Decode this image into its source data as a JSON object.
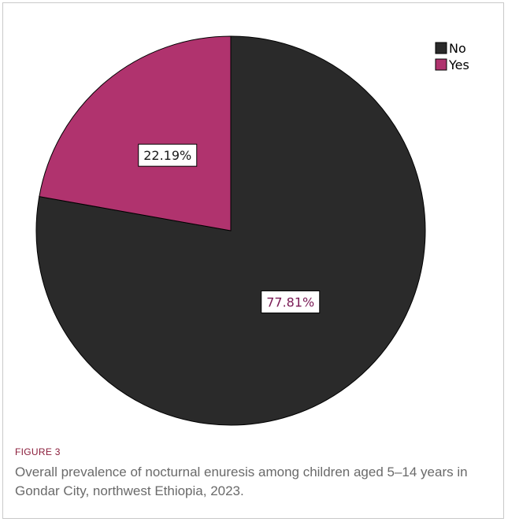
{
  "chart_data": {
    "type": "pie",
    "slices": [
      {
        "label": "No",
        "value": 77.81,
        "display": "77.81%",
        "color": "#2a2a2a",
        "label_color": "#7a1a55"
      },
      {
        "label": "Yes",
        "value": 22.19,
        "display": "22.19%",
        "color": "#b0336e",
        "label_color": "#1a1a1a"
      }
    ],
    "start_angle_deg": 0,
    "direction": "clockwise",
    "legend": {
      "position": "top-right",
      "entries": [
        "No",
        "Yes"
      ]
    }
  },
  "caption": {
    "label": "FIGURE 3",
    "text": "Overall prevalence of nocturnal enuresis among children aged 5–14 years in Gondar City, northwest Ethiopia, 2023."
  }
}
